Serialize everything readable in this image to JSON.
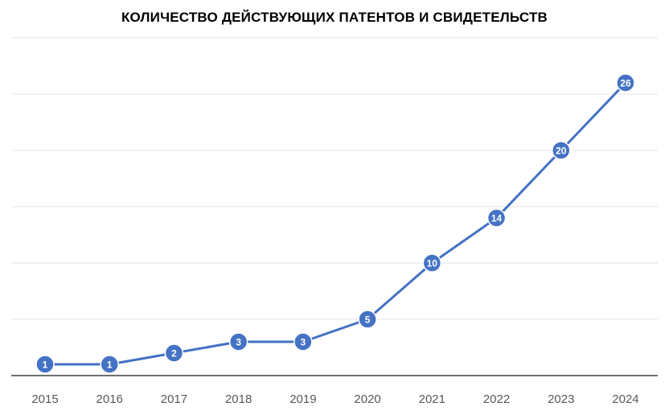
{
  "chart_data": {
    "type": "line",
    "title": "КОЛИЧЕСТВО ДЕЙСТВУЮЩИХ ПАТЕНТОВ И СВИДЕТЕЛЬСТВ",
    "xlabel": "",
    "ylabel": "",
    "categories": [
      "2015",
      "2016",
      "2017",
      "2018",
      "2019",
      "2020",
      "2021",
      "2022",
      "2023",
      "2024"
    ],
    "series": [
      {
        "values": [
          1,
          1,
          2,
          3,
          3,
          5,
          10,
          14,
          20,
          26
        ],
        "color": "#4472C4"
      }
    ],
    "ylim": [
      0,
      30
    ],
    "grid": true,
    "show_y_axis_labels": false,
    "data_labels": "inside-markers"
  }
}
